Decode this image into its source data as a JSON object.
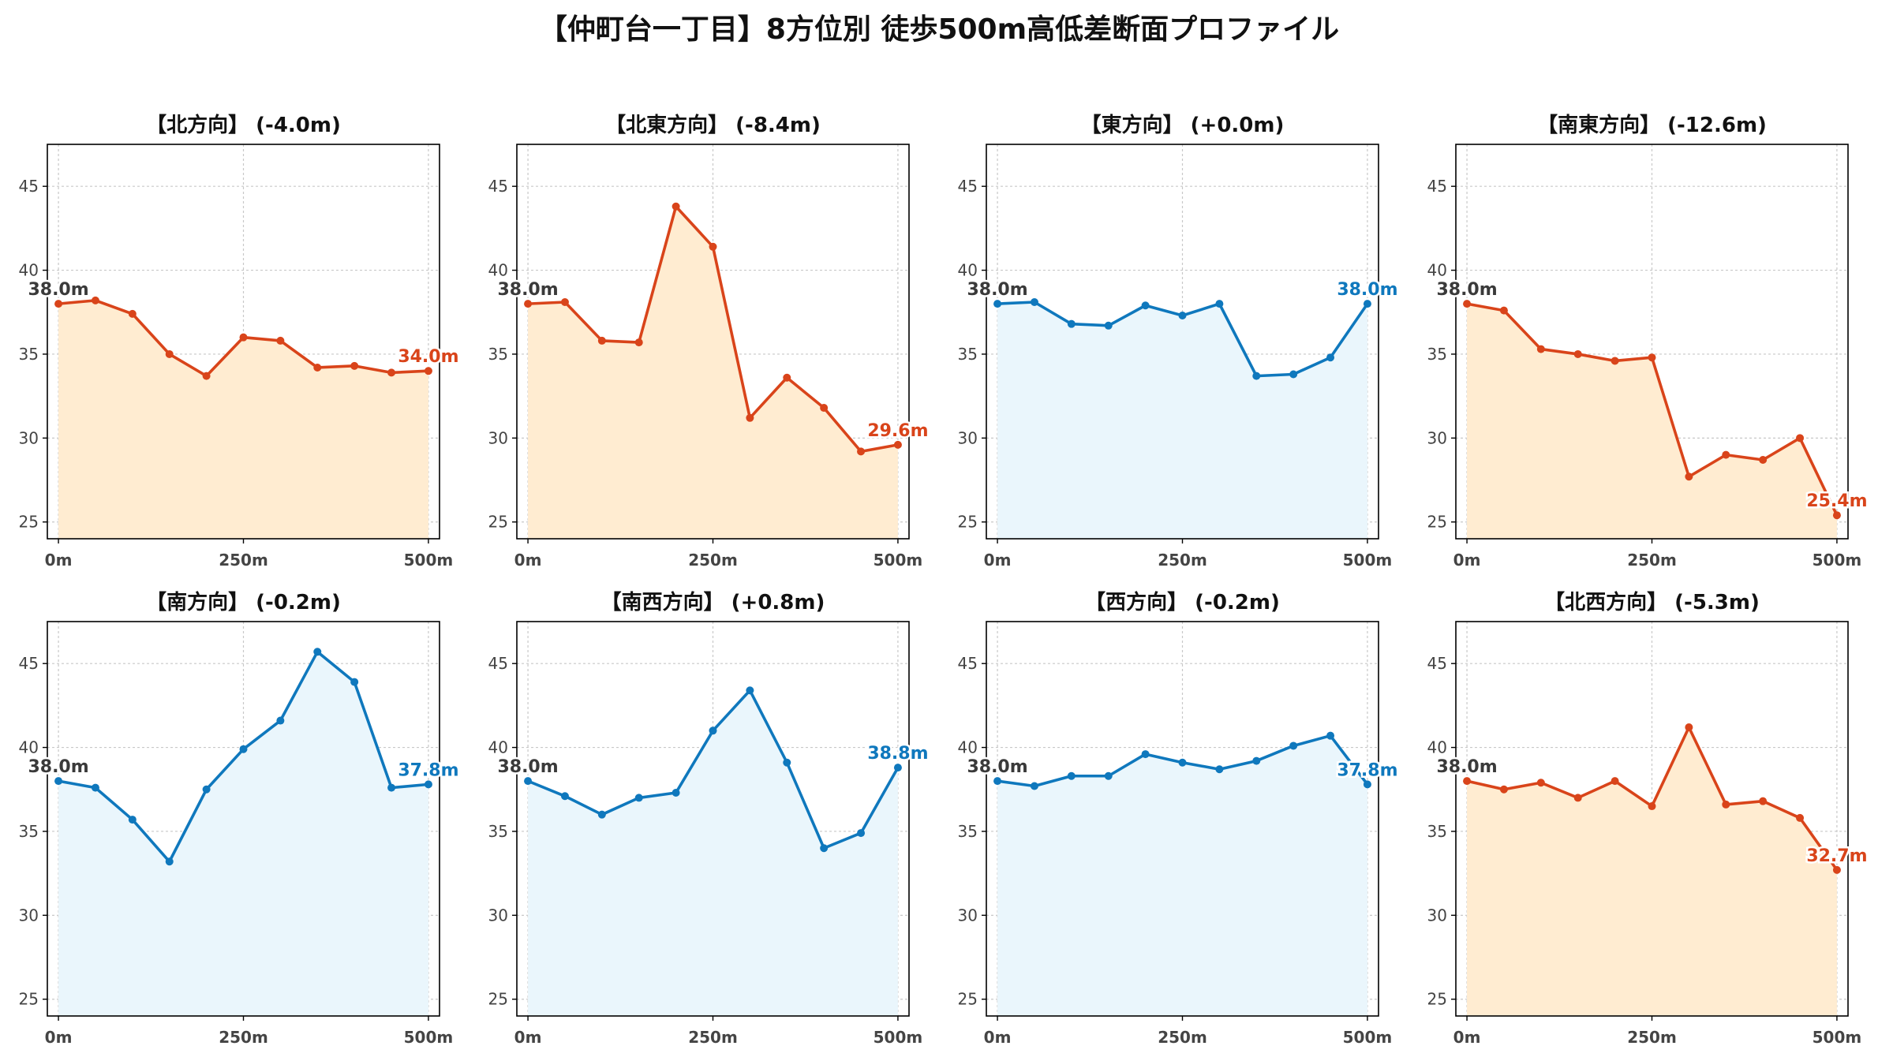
{
  "page_title": "【仲町台一丁目】8方位別 徒歩500m高低差断面プロファイル",
  "colors": {
    "down": "#d9441a",
    "down_fill": "#ffecd1",
    "up": "#0f78bd",
    "up_fill": "#eaf6fc",
    "start_label": "#3a3a3a",
    "grid": "#c8c8c8",
    "axis": "#000000",
    "tick_label": "#444444"
  },
  "chart_data": [
    {
      "type": "area",
      "title": "【北方向】 (-4.0m)",
      "trend": "down",
      "x": [
        0,
        50,
        100,
        150,
        200,
        250,
        300,
        350,
        400,
        450,
        500
      ],
      "values": [
        38.0,
        38.2,
        37.4,
        35.0,
        33.7,
        36.0,
        35.8,
        34.2,
        34.3,
        33.9,
        34.0
      ],
      "start_label": "38.0m",
      "end_label": "34.0m",
      "xticks": [
        "0m",
        "250m",
        "500m"
      ],
      "yticks": [
        "25",
        "30",
        "35",
        "40",
        "45"
      ],
      "xlim": [
        -15,
        515
      ],
      "ylim": [
        24,
        47.5
      ],
      "grid": true
    },
    {
      "type": "area",
      "title": "【北東方向】 (-8.4m)",
      "trend": "down",
      "x": [
        0,
        50,
        100,
        150,
        200,
        250,
        300,
        350,
        400,
        450,
        500
      ],
      "values": [
        38.0,
        38.1,
        35.8,
        35.7,
        43.8,
        41.4,
        31.2,
        33.6,
        31.8,
        29.2,
        29.6
      ],
      "start_label": "38.0m",
      "end_label": "29.6m",
      "xticks": [
        "0m",
        "250m",
        "500m"
      ],
      "yticks": [
        "25",
        "30",
        "35",
        "40",
        "45"
      ],
      "xlim": [
        -15,
        515
      ],
      "ylim": [
        24,
        47.5
      ],
      "grid": true
    },
    {
      "type": "area",
      "title": "【東方向】 (+0.0m)",
      "trend": "up",
      "x": [
        0,
        50,
        100,
        150,
        200,
        250,
        300,
        350,
        400,
        450,
        500
      ],
      "values": [
        38.0,
        38.1,
        36.8,
        36.7,
        37.9,
        37.3,
        38.0,
        33.7,
        33.8,
        34.8,
        38.0
      ],
      "start_label": "38.0m",
      "end_label": "38.0m",
      "xticks": [
        "0m",
        "250m",
        "500m"
      ],
      "yticks": [
        "25",
        "30",
        "35",
        "40",
        "45"
      ],
      "xlim": [
        -15,
        515
      ],
      "ylim": [
        24,
        47.5
      ],
      "grid": true
    },
    {
      "type": "area",
      "title": "【南東方向】 (-12.6m)",
      "trend": "down",
      "x": [
        0,
        50,
        100,
        150,
        200,
        250,
        300,
        350,
        400,
        450,
        500
      ],
      "values": [
        38.0,
        37.6,
        35.3,
        35.0,
        34.6,
        34.8,
        27.7,
        29.0,
        28.7,
        30.0,
        25.4
      ],
      "start_label": "38.0m",
      "end_label": "25.4m",
      "xticks": [
        "0m",
        "250m",
        "500m"
      ],
      "yticks": [
        "25",
        "30",
        "35",
        "40",
        "45"
      ],
      "xlim": [
        -15,
        515
      ],
      "ylim": [
        24,
        47.5
      ],
      "grid": true
    },
    {
      "type": "area",
      "title": "【南方向】 (-0.2m)",
      "trend": "up",
      "x": [
        0,
        50,
        100,
        150,
        200,
        250,
        300,
        350,
        400,
        450,
        500
      ],
      "values": [
        38.0,
        37.6,
        35.7,
        33.2,
        37.5,
        39.9,
        41.6,
        45.7,
        43.9,
        37.6,
        37.8
      ],
      "start_label": "38.0m",
      "end_label": "37.8m",
      "xticks": [
        "0m",
        "250m",
        "500m"
      ],
      "yticks": [
        "25",
        "30",
        "35",
        "40",
        "45"
      ],
      "xlim": [
        -15,
        515
      ],
      "ylim": [
        24,
        47.5
      ],
      "grid": true
    },
    {
      "type": "area",
      "title": "【南西方向】 (+0.8m)",
      "trend": "up",
      "x": [
        0,
        50,
        100,
        150,
        200,
        250,
        300,
        350,
        400,
        450,
        500
      ],
      "values": [
        38.0,
        37.1,
        36.0,
        37.0,
        37.3,
        41.0,
        43.4,
        39.1,
        34.0,
        34.9,
        38.8
      ],
      "start_label": "38.0m",
      "end_label": "38.8m",
      "xticks": [
        "0m",
        "250m",
        "500m"
      ],
      "yticks": [
        "25",
        "30",
        "35",
        "40",
        "45"
      ],
      "xlim": [
        -15,
        515
      ],
      "ylim": [
        24,
        47.5
      ],
      "grid": true
    },
    {
      "type": "area",
      "title": "【西方向】 (-0.2m)",
      "trend": "up",
      "x": [
        0,
        50,
        100,
        150,
        200,
        250,
        300,
        350,
        400,
        450,
        500
      ],
      "values": [
        38.0,
        37.7,
        38.3,
        38.3,
        39.6,
        39.1,
        38.7,
        39.2,
        40.1,
        40.7,
        37.8
      ],
      "start_label": "38.0m",
      "end_label": "37.8m",
      "xticks": [
        "0m",
        "250m",
        "500m"
      ],
      "yticks": [
        "25",
        "30",
        "35",
        "40",
        "45"
      ],
      "xlim": [
        -15,
        515
      ],
      "ylim": [
        24,
        47.5
      ],
      "grid": true
    },
    {
      "type": "area",
      "title": "【北西方向】 (-5.3m)",
      "trend": "down",
      "x": [
        0,
        50,
        100,
        150,
        200,
        250,
        300,
        350,
        400,
        450,
        500
      ],
      "values": [
        38.0,
        37.5,
        37.9,
        37.0,
        38.0,
        36.5,
        41.2,
        36.6,
        36.8,
        35.8,
        32.7
      ],
      "start_label": "38.0m",
      "end_label": "32.7m",
      "xticks": [
        "0m",
        "250m",
        "500m"
      ],
      "yticks": [
        "25",
        "30",
        "35",
        "40",
        "45"
      ],
      "xlim": [
        -15,
        515
      ],
      "ylim": [
        24,
        47.5
      ],
      "grid": true
    }
  ]
}
